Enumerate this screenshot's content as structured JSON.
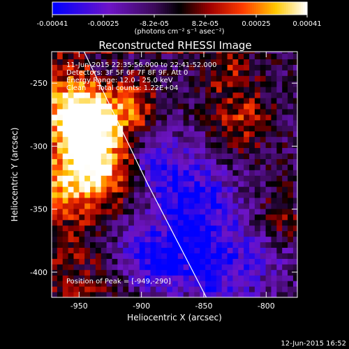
{
  "colorbar": {
    "ticks": [
      "-0.00041",
      "-0.00025",
      "-8.2e-05",
      "8.2e-05",
      "0.00025",
      "0.00041"
    ],
    "unit_label": "(photons cm⁻² s⁻¹ asec⁻²)",
    "range": [
      -0.00041,
      0.00041
    ]
  },
  "chart_data": {
    "type": "heatmap",
    "title": "Reconstructed RHESSI Image",
    "xlabel": "Heliocentric X (arcsec)",
    "ylabel": "Heliocentric Y (arcsec)",
    "xlim": [
      -972,
      -775
    ],
    "ylim": [
      -420,
      -225
    ],
    "x_ticks": [
      -950,
      -900,
      -850,
      -800
    ],
    "y_ticks": [
      -400,
      -350,
      -300,
      -250
    ],
    "x_tick_labels": [
      "-950",
      "-900",
      "-850",
      "-800"
    ],
    "y_tick_labels": [
      "-400",
      "-350",
      "-300",
      "-250"
    ],
    "colormap": "blue-purple-black-red-yellow-white",
    "peak": [
      -949,
      -290
    ],
    "limb": [
      [
        -946,
        -225
      ],
      [
        -895,
        -330
      ],
      [
        -848,
        -420
      ]
    ],
    "bright_regions": [
      {
        "x": -945,
        "y": -290,
        "intensity": 1.0
      },
      {
        "x": -955,
        "y": -270,
        "intensity": 0.8
      },
      {
        "x": -935,
        "y": -320,
        "intensity": 0.75
      },
      {
        "x": -912,
        "y": -270,
        "intensity": 0.8
      },
      {
        "x": -963,
        "y": -330,
        "intensity": 0.55
      },
      {
        "x": -820,
        "y": -280,
        "intensity": 0.5
      },
      {
        "x": -790,
        "y": -360,
        "intensity": 0.45
      },
      {
        "x": -830,
        "y": -240,
        "intensity": 0.4
      }
    ],
    "dark_regions": [
      {
        "x": -880,
        "y": -320,
        "intensity": -0.55
      },
      {
        "x": -850,
        "y": -350,
        "intensity": -0.6
      },
      {
        "x": -880,
        "y": -395,
        "intensity": -0.7
      },
      {
        "x": -840,
        "y": -400,
        "intensity": -0.5
      },
      {
        "x": -900,
        "y": -380,
        "intensity": -0.55
      },
      {
        "x": -800,
        "y": -380,
        "intensity": -0.35
      }
    ],
    "annotations": [
      "11-Jun-2015 22:35:56.000 to 22:41:52.000",
      "Detectors: 3F 5F 6F 7F 8F 9F, Att 0",
      "Energy Range: 12.0 - 25.0 keV",
      "Clean     Total counts: 1.22E+04",
      "Position of Peak = [-949,-290]"
    ],
    "footer": "12-Jun-2015 16:52"
  }
}
